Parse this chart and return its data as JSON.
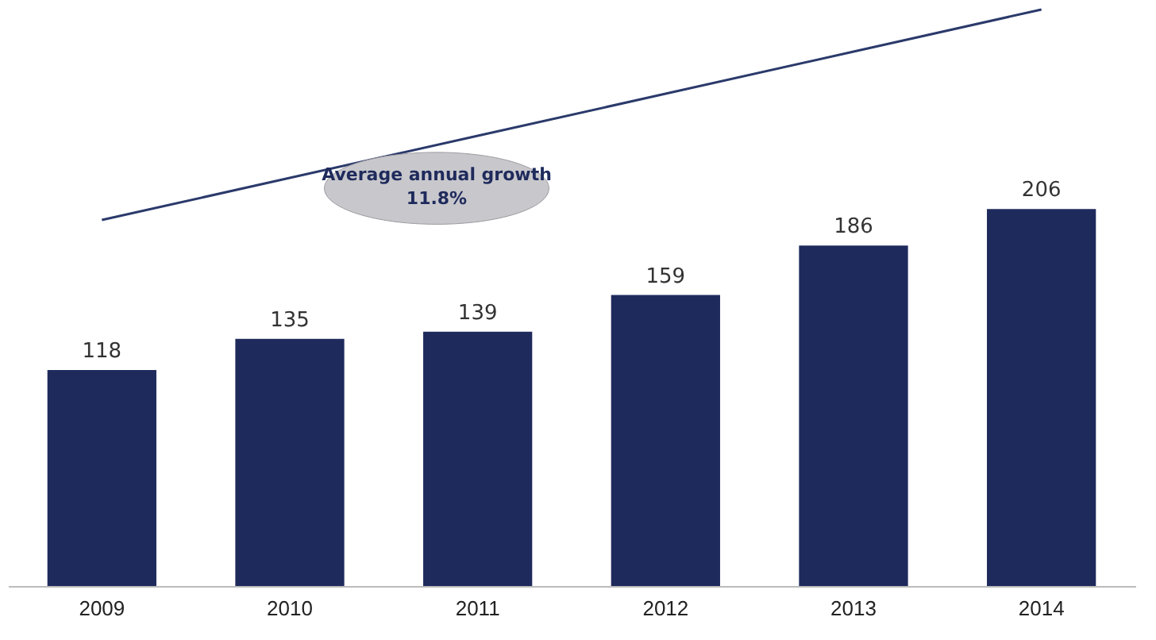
{
  "chart_data": {
    "type": "bar",
    "categories": [
      "2009",
      "2010",
      "2011",
      "2012",
      "2013",
      "2014"
    ],
    "series": [
      {
        "color": "#1f2a5c",
        "values": [
          118,
          135,
          139,
          159,
          186,
          206
        ],
        "value_labels": [
          "118",
          "135",
          "139",
          "159",
          "186",
          "206"
        ]
      },
      {
        "type": "line",
        "color": "#2b3a6b",
        "values": [
          200,
          223,
          246,
          269,
          292,
          315
        ]
      }
    ],
    "tick_labels": "x",
    "annotations": [
      "Average annual growth\n11.8%"
    ]
  }
}
